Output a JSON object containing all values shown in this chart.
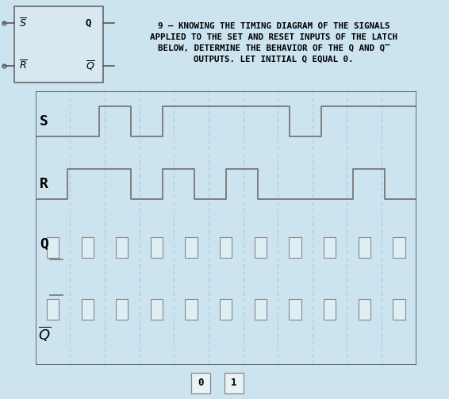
{
  "bg_color": "#cce3f0",
  "fig_bg": "#cce3f0",
  "title_text": "9 – KNOWING THE TIMING DIAGRAM OF THE SIGNALS\nAPPLIED TO THE SET AND RESET INPUTS OF THE LATCH\nBELOW, DETERMINE THE BEHAVIOR OF THE Q AND Q̅\nOUTPUTS. LET INITIAL Q EQUAL 0.",
  "title_fontsize": 7.8,
  "signal_color": "#777777",
  "grid_color": "#aaccd8",
  "box_color": "#ddeef5",
  "box_edge": "#888888",
  "latch_box_color": "#d8e8f0",
  "S_signal": [
    0,
    0,
    1,
    0,
    1,
    1,
    1,
    1,
    0,
    1,
    1,
    1
  ],
  "R_signal": [
    0,
    1,
    1,
    0,
    1,
    0,
    1,
    0,
    0,
    0,
    1,
    0
  ],
  "bottom_labels": [
    "0",
    "1"
  ],
  "bottom_box_color": "#e8f2f7",
  "bottom_box_edge": "#888888",
  "num_cols": 11
}
